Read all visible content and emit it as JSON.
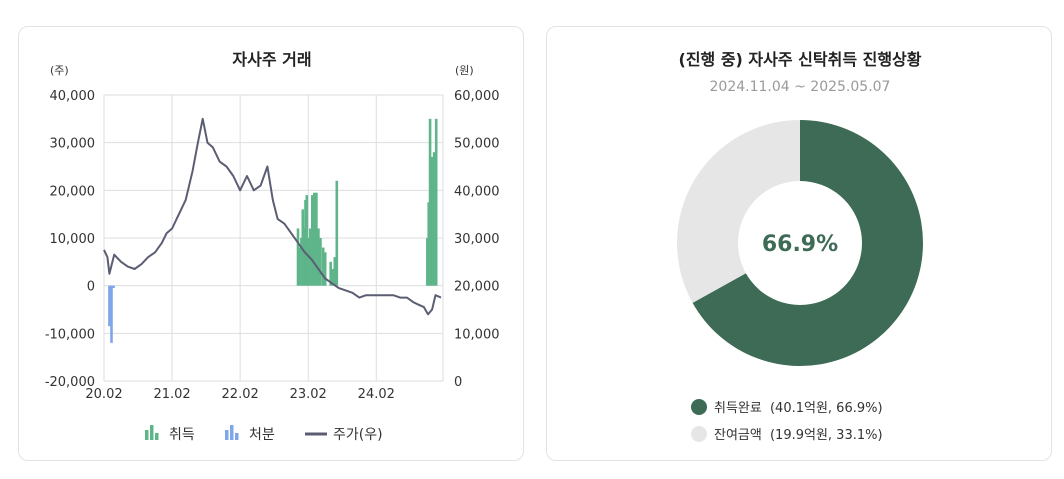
{
  "left_chart": {
    "title": "자사주 거래",
    "left_unit": "(주)",
    "right_unit": "(원)",
    "left_ticks": [
      "40,000",
      "30,000",
      "20,000",
      "10,000",
      "0",
      "-10,000",
      "-20,000"
    ],
    "right_ticks": [
      "60,000",
      "50,000",
      "40,000",
      "30,000",
      "20,000",
      "10,000",
      "0"
    ],
    "x_ticks": [
      "20.02",
      "21.02",
      "22.02",
      "23.02",
      "24.02"
    ],
    "legend": {
      "buy": "취득",
      "sell": "처분",
      "price": "주가(우)"
    }
  },
  "right_chart": {
    "title": "(진행 중) 자사주 신탁취득 진행상황",
    "period": "2024.11.04 ~ 2025.05.07",
    "center_label": "66.9%",
    "legend": [
      {
        "label": "취득완료",
        "detail": "(40.1억원, 66.9%)"
      },
      {
        "label": "잔여금액",
        "detail": "(19.9억원, 33.1%)"
      }
    ]
  },
  "colors": {
    "buy": "#5fb58a",
    "sell": "#7ea6e8",
    "price": "#5b5e73",
    "done": "#3d6b55",
    "remaining": "#e6e6e6"
  },
  "chart_data": [
    {
      "type": "bar+line",
      "title": "자사주 거래",
      "x_axis": {
        "ticks": [
          "20.02",
          "21.02",
          "22.02",
          "23.02",
          "24.02"
        ],
        "range": [
          "2020.02",
          "2024.12"
        ]
      },
      "y_left": {
        "unit": "(주)",
        "ylim": [
          -20000,
          40000
        ]
      },
      "y_right": {
        "unit": "(원)",
        "ylim": [
          0,
          60000
        ]
      },
      "grid": true,
      "legend_position": "bottom",
      "series": [
        {
          "name": "취득",
          "type": "bar",
          "axis": "left",
          "points": [
            {
              "x": 2022.85,
              "y": 12000
            },
            {
              "x": 2022.87,
              "y": 8000
            },
            {
              "x": 2022.9,
              "y": 10000
            },
            {
              "x": 2022.92,
              "y": 16000
            },
            {
              "x": 2022.94,
              "y": 12000
            },
            {
              "x": 2022.96,
              "y": 18000
            },
            {
              "x": 2022.98,
              "y": 19000
            },
            {
              "x": 2023.0,
              "y": 10000
            },
            {
              "x": 2023.03,
              "y": 12000
            },
            {
              "x": 2023.06,
              "y": 19000
            },
            {
              "x": 2023.09,
              "y": 19500
            },
            {
              "x": 2023.12,
              "y": 19500
            },
            {
              "x": 2023.15,
              "y": 12000
            },
            {
              "x": 2023.18,
              "y": 10000
            },
            {
              "x": 2023.22,
              "y": 8000
            },
            {
              "x": 2023.25,
              "y": 7000
            },
            {
              "x": 2023.33,
              "y": 5000
            },
            {
              "x": 2023.36,
              "y": 3500
            },
            {
              "x": 2023.39,
              "y": 6000
            },
            {
              "x": 2023.42,
              "y": 22000
            },
            {
              "x": 2024.75,
              "y": 10000
            },
            {
              "x": 2024.77,
              "y": 17500
            },
            {
              "x": 2024.79,
              "y": 35000
            },
            {
              "x": 2024.81,
              "y": 27000
            },
            {
              "x": 2024.83,
              "y": 27000
            },
            {
              "x": 2024.85,
              "y": 28000
            },
            {
              "x": 2024.88,
              "y": 35000
            }
          ]
        },
        {
          "name": "처분",
          "type": "bar",
          "axis": "left",
          "points": [
            {
              "x": 2020.08,
              "y": -8500
            },
            {
              "x": 2020.11,
              "y": -12000
            },
            {
              "x": 2020.14,
              "y": -500
            }
          ]
        },
        {
          "name": "주가(우)",
          "type": "line",
          "axis": "right",
          "points": [
            {
              "x": 2020.0,
              "y": 27500
            },
            {
              "x": 2020.05,
              "y": 26000
            },
            {
              "x": 2020.08,
              "y": 22500
            },
            {
              "x": 2020.15,
              "y": 26500
            },
            {
              "x": 2020.25,
              "y": 25000
            },
            {
              "x": 2020.35,
              "y": 24000
            },
            {
              "x": 2020.45,
              "y": 23500
            },
            {
              "x": 2020.55,
              "y": 24500
            },
            {
              "x": 2020.65,
              "y": 26000
            },
            {
              "x": 2020.75,
              "y": 27000
            },
            {
              "x": 2020.85,
              "y": 29000
            },
            {
              "x": 2020.92,
              "y": 31000
            },
            {
              "x": 2021.0,
              "y": 32000
            },
            {
              "x": 2021.1,
              "y": 35000
            },
            {
              "x": 2021.2,
              "y": 38000
            },
            {
              "x": 2021.3,
              "y": 44000
            },
            {
              "x": 2021.38,
              "y": 50000
            },
            {
              "x": 2021.45,
              "y": 55000
            },
            {
              "x": 2021.52,
              "y": 50000
            },
            {
              "x": 2021.6,
              "y": 49000
            },
            {
              "x": 2021.7,
              "y": 46000
            },
            {
              "x": 2021.8,
              "y": 45000
            },
            {
              "x": 2021.9,
              "y": 43000
            },
            {
              "x": 2022.0,
              "y": 40000
            },
            {
              "x": 2022.1,
              "y": 43000
            },
            {
              "x": 2022.2,
              "y": 40000
            },
            {
              "x": 2022.3,
              "y": 41000
            },
            {
              "x": 2022.4,
              "y": 45000
            },
            {
              "x": 2022.48,
              "y": 38000
            },
            {
              "x": 2022.55,
              "y": 34000
            },
            {
              "x": 2022.65,
              "y": 33000
            },
            {
              "x": 2022.75,
              "y": 31000
            },
            {
              "x": 2022.85,
              "y": 29000
            },
            {
              "x": 2022.95,
              "y": 27000
            },
            {
              "x": 2023.05,
              "y": 25500
            },
            {
              "x": 2023.15,
              "y": 23500
            },
            {
              "x": 2023.25,
              "y": 21500
            },
            {
              "x": 2023.35,
              "y": 20500
            },
            {
              "x": 2023.45,
              "y": 19500
            },
            {
              "x": 2023.55,
              "y": 19000
            },
            {
              "x": 2023.65,
              "y": 18500
            },
            {
              "x": 2023.75,
              "y": 17500
            },
            {
              "x": 2023.85,
              "y": 18000
            },
            {
              "x": 2023.95,
              "y": 18000
            },
            {
              "x": 2024.05,
              "y": 18000
            },
            {
              "x": 2024.15,
              "y": 18000
            },
            {
              "x": 2024.25,
              "y": 18000
            },
            {
              "x": 2024.35,
              "y": 17500
            },
            {
              "x": 2024.45,
              "y": 17500
            },
            {
              "x": 2024.55,
              "y": 16500
            },
            {
              "x": 2024.62,
              "y": 16000
            },
            {
              "x": 2024.7,
              "y": 15500
            },
            {
              "x": 2024.76,
              "y": 14000
            },
            {
              "x": 2024.82,
              "y": 15000
            },
            {
              "x": 2024.87,
              "y": 18000
            },
            {
              "x": 2024.95,
              "y": 17500
            }
          ]
        }
      ]
    },
    {
      "type": "pie",
      "title": "(진행 중) 자사주 신탁취득 진행상황",
      "subtitle": "2024.11.04 ~ 2025.05.07",
      "donut": true,
      "center_label": "66.9%",
      "slices": [
        {
          "label": "취득완료",
          "value": 66.9,
          "amount": "40.1억원"
        },
        {
          "label": "잔여금액",
          "value": 33.1,
          "amount": "19.9억원"
        }
      ],
      "legend_position": "bottom"
    }
  ]
}
